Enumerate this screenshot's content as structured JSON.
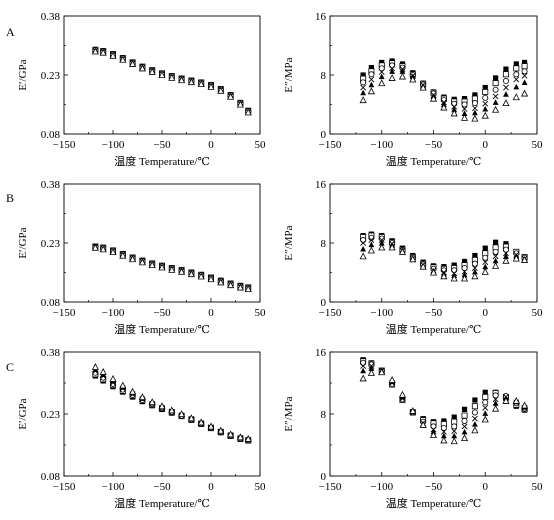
{
  "figure": {
    "panel_letters": [
      "A",
      "B",
      "C"
    ]
  },
  "chart_data": [
    {
      "id": "A-left",
      "type": "scatter",
      "panel_letter": "A",
      "ylabel": "E′/GPa",
      "xlabel_cn": "温度",
      "xlabel_en": "Temperature/℃",
      "xlim": [
        -150,
        50
      ],
      "ylim": [
        0.08,
        0.38
      ],
      "xticks": [
        -150,
        -100,
        -50,
        0,
        50
      ],
      "yticks": [
        0.08,
        0.23,
        0.38
      ],
      "ytick_labels": [
        "0.08",
        "0.23",
        "0.38"
      ],
      "marker_types": [
        "square-filled",
        "square-open",
        "circle-open",
        "cross",
        "triangle-filled",
        "triangle-open"
      ],
      "x": [
        -118,
        -110,
        -100,
        -90,
        -80,
        -70,
        -60,
        -50,
        -40,
        -30,
        -20,
        -10,
        0,
        10,
        20,
        30,
        38
      ],
      "series": [
        {
          "marker": "square-filled",
          "values": [
            0.295,
            0.292,
            0.284,
            0.274,
            0.263,
            0.252,
            0.243,
            0.235,
            0.228,
            0.222,
            0.217,
            0.212,
            0.205,
            0.195,
            0.18,
            0.16,
            0.14
          ]
        },
        {
          "marker": "square-open",
          "values": [
            0.294,
            0.291,
            0.283,
            0.273,
            0.262,
            0.251,
            0.242,
            0.234,
            0.227,
            0.221,
            0.216,
            0.211,
            0.204,
            0.194,
            0.179,
            0.159,
            0.139
          ]
        },
        {
          "marker": "circle-open",
          "values": [
            0.293,
            0.29,
            0.282,
            0.272,
            0.261,
            0.25,
            0.241,
            0.233,
            0.226,
            0.22,
            0.215,
            0.21,
            0.203,
            0.193,
            0.178,
            0.158,
            0.138
          ]
        },
        {
          "marker": "cross",
          "values": [
            0.292,
            0.289,
            0.281,
            0.271,
            0.26,
            0.249,
            0.24,
            0.232,
            0.225,
            0.219,
            0.214,
            0.209,
            0.202,
            0.192,
            0.177,
            0.157,
            0.137
          ]
        },
        {
          "marker": "triangle-filled",
          "values": [
            0.291,
            0.288,
            0.28,
            0.27,
            0.259,
            0.248,
            0.239,
            0.231,
            0.224,
            0.218,
            0.213,
            0.208,
            0.201,
            0.191,
            0.176,
            0.156,
            0.136
          ]
        },
        {
          "marker": "triangle-open",
          "values": [
            0.29,
            0.287,
            0.279,
            0.269,
            0.258,
            0.247,
            0.238,
            0.23,
            0.223,
            0.217,
            0.212,
            0.207,
            0.2,
            0.19,
            0.175,
            0.155,
            0.135
          ]
        }
      ]
    },
    {
      "id": "A-right",
      "type": "scatter",
      "ylabel": "E″/MPa",
      "xlabel_cn": "温度",
      "xlabel_en": "Temperature/℃",
      "xlim": [
        -150,
        50
      ],
      "ylim": [
        0,
        16
      ],
      "xticks": [
        -150,
        -100,
        -50,
        0,
        50
      ],
      "yticks": [
        0,
        8,
        16
      ],
      "ytick_labels": [
        "0",
        "8",
        "16"
      ],
      "marker_types": [
        "square-filled",
        "square-open",
        "circle-open",
        "cross",
        "triangle-filled",
        "triangle-open"
      ],
      "x": [
        -118,
        -110,
        -100,
        -90,
        -80,
        -70,
        -60,
        -50,
        -40,
        -30,
        -20,
        -10,
        0,
        10,
        20,
        30,
        38
      ],
      "series": [
        {
          "marker": "square-filled",
          "values": [
            8.0,
            9.0,
            9.7,
            9.9,
            9.5,
            8.3,
            6.9,
            5.7,
            5.0,
            4.7,
            4.8,
            5.3,
            6.3,
            7.6,
            8.8,
            9.5,
            9.7
          ]
        },
        {
          "marker": "square-open",
          "values": [
            7.5,
            8.5,
            9.3,
            9.6,
            9.2,
            8.1,
            6.8,
            5.6,
            4.8,
            4.4,
            4.4,
            4.8,
            5.7,
            6.9,
            8.1,
            8.9,
            9.2
          ]
        },
        {
          "marker": "circle-open",
          "values": [
            7.0,
            8.1,
            8.9,
            9.3,
            9.0,
            8.0,
            6.7,
            5.5,
            4.6,
            4.1,
            4.0,
            4.2,
            4.9,
            6.0,
            7.2,
            8.1,
            8.5
          ]
        },
        {
          "marker": "cross",
          "values": [
            6.3,
            7.4,
            8.4,
            8.9,
            8.8,
            7.9,
            6.6,
            5.3,
            4.3,
            3.7,
            3.4,
            3.5,
            4.1,
            5.1,
            6.3,
            7.4,
            7.9
          ]
        },
        {
          "marker": "triangle-filled",
          "values": [
            5.6,
            6.7,
            7.8,
            8.5,
            8.5,
            7.8,
            6.5,
            5.1,
            4.0,
            3.3,
            2.8,
            2.9,
            3.4,
            4.3,
            5.4,
            6.4,
            7.0
          ]
        },
        {
          "marker": "triangle-open",
          "values": [
            4.6,
            5.8,
            6.9,
            7.6,
            7.8,
            7.4,
            6.3,
            4.8,
            3.6,
            2.8,
            2.2,
            2.1,
            2.5,
            3.3,
            4.2,
            5.0,
            5.5
          ]
        }
      ]
    },
    {
      "id": "B-left",
      "type": "scatter",
      "panel_letter": "B",
      "ylabel": "E′/GPa",
      "xlabel_cn": "温度",
      "xlabel_en": "Temperature/℃",
      "xlim": [
        -150,
        50
      ],
      "ylim": [
        0.08,
        0.38
      ],
      "xticks": [
        -150,
        -100,
        -50,
        0,
        50
      ],
      "yticks": [
        0.08,
        0.23,
        0.38
      ],
      "ytick_labels": [
        "0.08",
        "0.23",
        "0.38"
      ],
      "marker_types": [
        "square-filled",
        "square-open",
        "circle-open",
        "cross",
        "triangle-filled",
        "triangle-open"
      ],
      "x": [
        -118,
        -110,
        -100,
        -90,
        -80,
        -70,
        -60,
        -50,
        -40,
        -30,
        -20,
        -10,
        0,
        10,
        20,
        30,
        38
      ],
      "series": [
        {
          "marker": "square-filled",
          "values": [
            0.222,
            0.219,
            0.212,
            0.203,
            0.194,
            0.186,
            0.179,
            0.173,
            0.167,
            0.162,
            0.156,
            0.15,
            0.143,
            0.135,
            0.128,
            0.122,
            0.118
          ]
        },
        {
          "marker": "square-open",
          "values": [
            0.221,
            0.218,
            0.211,
            0.202,
            0.193,
            0.185,
            0.178,
            0.172,
            0.166,
            0.161,
            0.155,
            0.149,
            0.142,
            0.134,
            0.127,
            0.121,
            0.117
          ]
        },
        {
          "marker": "circle-open",
          "values": [
            0.22,
            0.217,
            0.21,
            0.201,
            0.192,
            0.184,
            0.177,
            0.171,
            0.165,
            0.16,
            0.154,
            0.148,
            0.141,
            0.133,
            0.126,
            0.12,
            0.116
          ]
        },
        {
          "marker": "cross",
          "values": [
            0.22,
            0.216,
            0.209,
            0.2,
            0.191,
            0.183,
            0.176,
            0.17,
            0.164,
            0.159,
            0.153,
            0.147,
            0.14,
            0.132,
            0.125,
            0.119,
            0.115
          ]
        },
        {
          "marker": "triangle-filled",
          "values": [
            0.219,
            0.215,
            0.208,
            0.199,
            0.19,
            0.182,
            0.175,
            0.169,
            0.163,
            0.158,
            0.152,
            0.146,
            0.139,
            0.131,
            0.124,
            0.118,
            0.114
          ]
        },
        {
          "marker": "triangle-open",
          "values": [
            0.218,
            0.214,
            0.207,
            0.198,
            0.189,
            0.181,
            0.174,
            0.168,
            0.162,
            0.157,
            0.151,
            0.145,
            0.138,
            0.13,
            0.123,
            0.117,
            0.113
          ]
        }
      ]
    },
    {
      "id": "B-right",
      "type": "scatter",
      "ylabel": "E″/MPa",
      "xlabel_cn": "温度",
      "xlabel_en": "Temperature/℃",
      "xlim": [
        -150,
        50
      ],
      "ylim": [
        0,
        16
      ],
      "xticks": [
        -150,
        -100,
        -50,
        0,
        50
      ],
      "yticks": [
        0,
        8,
        16
      ],
      "ytick_labels": [
        "0",
        "8",
        "16"
      ],
      "marker_types": [
        "square-filled",
        "square-open",
        "circle-open",
        "cross",
        "triangle-filled",
        "triangle-open"
      ],
      "x": [
        -118,
        -110,
        -100,
        -90,
        -80,
        -70,
        -60,
        -50,
        -40,
        -30,
        -20,
        -10,
        0,
        10,
        20,
        30,
        38
      ],
      "series": [
        {
          "marker": "square-filled",
          "values": [
            9.0,
            9.2,
            9.0,
            8.3,
            7.3,
            6.3,
            5.4,
            4.9,
            4.8,
            5.0,
            5.5,
            6.3,
            7.3,
            8.1,
            7.9,
            6.8,
            6.0
          ]
        },
        {
          "marker": "square-open",
          "values": [
            8.8,
            9.0,
            8.8,
            8.1,
            7.1,
            6.1,
            5.2,
            4.7,
            4.5,
            4.6,
            5.0,
            5.7,
            6.6,
            7.4,
            7.5,
            6.8,
            6.1
          ]
        },
        {
          "marker": "circle-open",
          "values": [
            8.4,
            8.7,
            8.6,
            8.0,
            7.0,
            6.0,
            5.1,
            4.5,
            4.3,
            4.3,
            4.6,
            5.2,
            6.0,
            6.8,
            7.1,
            6.6,
            6.0
          ]
        },
        {
          "marker": "cross",
          "values": [
            8.0,
            8.4,
            8.4,
            7.9,
            7.0,
            5.9,
            5.0,
            4.3,
            4.0,
            3.9,
            4.1,
            4.6,
            5.4,
            6.2,
            6.6,
            6.4,
            5.9
          ]
        },
        {
          "marker": "triangle-filled",
          "values": [
            7.2,
            7.8,
            8.0,
            7.7,
            6.9,
            5.9,
            4.9,
            4.2,
            3.8,
            3.6,
            3.7,
            4.1,
            4.8,
            5.6,
            6.2,
            6.2,
            5.8
          ]
        },
        {
          "marker": "triangle-open",
          "values": [
            6.2,
            7.0,
            7.4,
            7.4,
            6.8,
            5.8,
            4.8,
            4.0,
            3.5,
            3.2,
            3.2,
            3.5,
            4.1,
            4.9,
            5.6,
            5.9,
            5.7
          ]
        }
      ]
    },
    {
      "id": "C-left",
      "type": "scatter",
      "panel_letter": "C",
      "ylabel": "E′/GPa",
      "xlabel_cn": "温度",
      "xlabel_en": "Temperature/℃",
      "xlim": [
        -150,
        50
      ],
      "ylim": [
        0.08,
        0.38
      ],
      "xticks": [
        -150,
        -100,
        -50,
        0,
        50
      ],
      "yticks": [
        0.08,
        0.23,
        0.38
      ],
      "ytick_labels": [
        "0.08",
        "0.23",
        "0.38"
      ],
      "marker_types": [
        "square-filled",
        "square-open",
        "circle-open",
        "cross",
        "triangle-filled",
        "triangle-open"
      ],
      "x": [
        -118,
        -110,
        -100,
        -90,
        -80,
        -70,
        -60,
        -50,
        -40,
        -30,
        -20,
        -10,
        0,
        10,
        20,
        30,
        38
      ],
      "series": [
        {
          "marker": "square-filled",
          "values": [
            0.322,
            0.31,
            0.296,
            0.283,
            0.271,
            0.26,
            0.25,
            0.241,
            0.232,
            0.224,
            0.215,
            0.205,
            0.195,
            0.185,
            0.176,
            0.169,
            0.165
          ]
        },
        {
          "marker": "square-open",
          "values": [
            0.326,
            0.314,
            0.3,
            0.286,
            0.274,
            0.262,
            0.252,
            0.243,
            0.234,
            0.225,
            0.216,
            0.206,
            0.196,
            0.186,
            0.177,
            0.17,
            0.166
          ]
        },
        {
          "marker": "circle-open",
          "values": [
            0.33,
            0.318,
            0.303,
            0.289,
            0.276,
            0.264,
            0.254,
            0.244,
            0.235,
            0.226,
            0.217,
            0.207,
            0.197,
            0.187,
            0.178,
            0.171,
            0.167
          ]
        },
        {
          "marker": "cross",
          "values": [
            0.334,
            0.322,
            0.306,
            0.292,
            0.278,
            0.266,
            0.255,
            0.245,
            0.236,
            0.227,
            0.218,
            0.208,
            0.198,
            0.188,
            0.179,
            0.172,
            0.168
          ]
        },
        {
          "marker": "triangle-filled",
          "values": [
            0.338,
            0.326,
            0.31,
            0.295,
            0.281,
            0.268,
            0.257,
            0.247,
            0.238,
            0.229,
            0.219,
            0.209,
            0.199,
            0.189,
            0.18,
            0.173,
            0.169
          ]
        },
        {
          "marker": "triangle-open",
          "values": [
            0.344,
            0.332,
            0.315,
            0.299,
            0.284,
            0.271,
            0.259,
            0.249,
            0.239,
            0.23,
            0.22,
            0.21,
            0.2,
            0.19,
            0.181,
            0.174,
            0.17
          ]
        }
      ]
    },
    {
      "id": "C-right",
      "type": "scatter",
      "ylabel": "E″/MPa",
      "xlabel_cn": "温度",
      "xlabel_en": "Temperature/℃",
      "xlim": [
        -150,
        50
      ],
      "ylim": [
        0,
        16
      ],
      "xticks": [
        -150,
        -100,
        -50,
        0,
        50
      ],
      "yticks": [
        0,
        8,
        16
      ],
      "ytick_labels": [
        "0",
        "8",
        "16"
      ],
      "marker_types": [
        "square-filled",
        "square-open",
        "circle-open",
        "cross",
        "triangle-filled",
        "triangle-open"
      ],
      "x": [
        -118,
        -110,
        -100,
        -90,
        -80,
        -70,
        -60,
        -50,
        -40,
        -30,
        -20,
        -10,
        0,
        10,
        20,
        30,
        38
      ],
      "series": [
        {
          "marker": "square-filled",
          "values": [
            15.0,
            14.6,
            13.6,
            11.8,
            9.8,
            8.3,
            7.4,
            7.0,
            7.1,
            7.6,
            8.6,
            9.8,
            10.8,
            10.8,
            10.0,
            9.0,
            8.5
          ]
        },
        {
          "marker": "square-open",
          "values": [
            14.8,
            14.5,
            13.6,
            11.8,
            9.8,
            8.2,
            7.2,
            6.8,
            6.7,
            7.0,
            7.8,
            9.0,
            10.2,
            10.7,
            10.2,
            9.2,
            8.6
          ]
        },
        {
          "marker": "circle-open",
          "values": [
            14.6,
            14.4,
            13.6,
            11.9,
            9.9,
            8.2,
            7.0,
            6.4,
            6.2,
            6.4,
            7.1,
            8.2,
            9.5,
            10.4,
            10.3,
            9.4,
            8.7
          ]
        },
        {
          "marker": "cross",
          "values": [
            14.2,
            14.2,
            13.6,
            12.0,
            10.0,
            8.2,
            6.8,
            6.0,
            5.7,
            5.8,
            6.4,
            7.4,
            8.8,
            9.9,
            10.2,
            9.5,
            8.8
          ]
        },
        {
          "marker": "triangle-filled",
          "values": [
            13.6,
            13.9,
            13.6,
            12.2,
            10.2,
            8.3,
            6.7,
            5.7,
            5.2,
            5.2,
            5.7,
            6.7,
            8.1,
            9.4,
            10.0,
            9.6,
            8.9
          ]
        },
        {
          "marker": "triangle-open",
          "values": [
            12.6,
            13.3,
            13.4,
            12.4,
            10.5,
            8.4,
            6.6,
            5.3,
            4.6,
            4.5,
            4.9,
            5.9,
            7.3,
            8.7,
            9.7,
            9.7,
            9.1
          ]
        }
      ]
    }
  ]
}
